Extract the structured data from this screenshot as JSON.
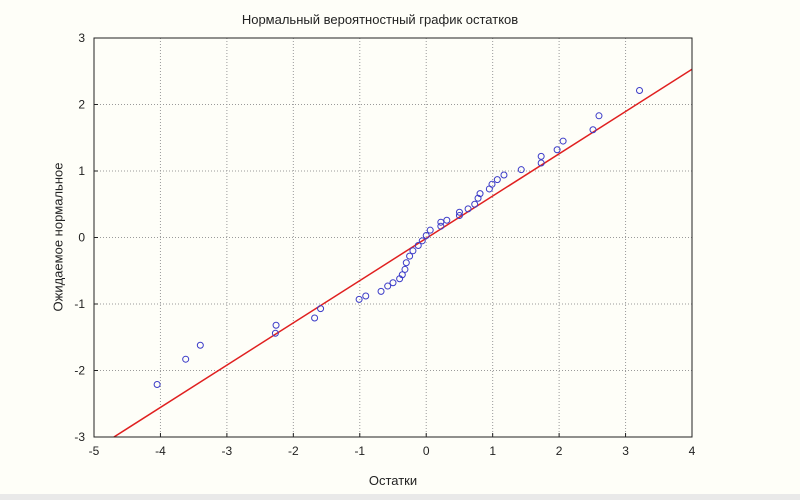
{
  "chart_data": {
    "type": "scatter",
    "title": "Нормальный вероятностный график остатков",
    "xlabel": "Остатки",
    "ylabel": "Ожидаемое нормальное",
    "xlim": [
      -5,
      4
    ],
    "ylim": [
      -3,
      3
    ],
    "xticks": [
      "-5",
      "-4",
      "-3",
      "-2",
      "-1",
      "0",
      "1",
      "2",
      "3",
      "4"
    ],
    "yticks": [
      "-3",
      "-2",
      "-1",
      "0",
      "1",
      "2",
      "3"
    ],
    "grid": true,
    "colors": {
      "points": "#3b3bc8",
      "line": "#e02020",
      "grid": "#9a9a9a"
    },
    "reference_line": {
      "x": [
        -4.7,
        4.0
      ],
      "y": [
        -3.0,
        2.53
      ]
    },
    "points": [
      [
        -4.05,
        -2.21
      ],
      [
        -3.62,
        -1.83
      ],
      [
        -3.4,
        -1.62
      ],
      [
        -2.26,
        -1.32
      ],
      [
        -2.27,
        -1.44
      ],
      [
        -1.68,
        -1.21
      ],
      [
        -1.59,
        -1.07
      ],
      [
        -1.01,
        -0.93
      ],
      [
        -0.91,
        -0.88
      ],
      [
        -0.68,
        -0.81
      ],
      [
        -0.58,
        -0.73
      ],
      [
        -0.5,
        -0.68
      ],
      [
        -0.4,
        -0.62
      ],
      [
        -0.36,
        -0.56
      ],
      [
        -0.32,
        -0.48
      ],
      [
        -0.3,
        -0.38
      ],
      [
        -0.25,
        -0.28
      ],
      [
        -0.2,
        -0.2
      ],
      [
        -0.12,
        -0.12
      ],
      [
        -0.06,
        -0.05
      ],
      [
        0.0,
        0.03
      ],
      [
        0.06,
        0.11
      ],
      [
        0.22,
        0.17
      ],
      [
        0.22,
        0.23
      ],
      [
        0.31,
        0.26
      ],
      [
        0.5,
        0.33
      ],
      [
        0.5,
        0.38
      ],
      [
        0.63,
        0.43
      ],
      [
        0.73,
        0.5
      ],
      [
        0.78,
        0.59
      ],
      [
        0.81,
        0.66
      ],
      [
        0.95,
        0.73
      ],
      [
        0.99,
        0.8
      ],
      [
        1.07,
        0.87
      ],
      [
        1.17,
        0.94
      ],
      [
        1.43,
        1.02
      ],
      [
        1.73,
        1.12
      ],
      [
        1.73,
        1.22
      ],
      [
        1.97,
        1.32
      ],
      [
        2.06,
        1.45
      ],
      [
        2.51,
        1.62
      ],
      [
        2.6,
        1.83
      ],
      [
        3.21,
        2.21
      ]
    ]
  }
}
